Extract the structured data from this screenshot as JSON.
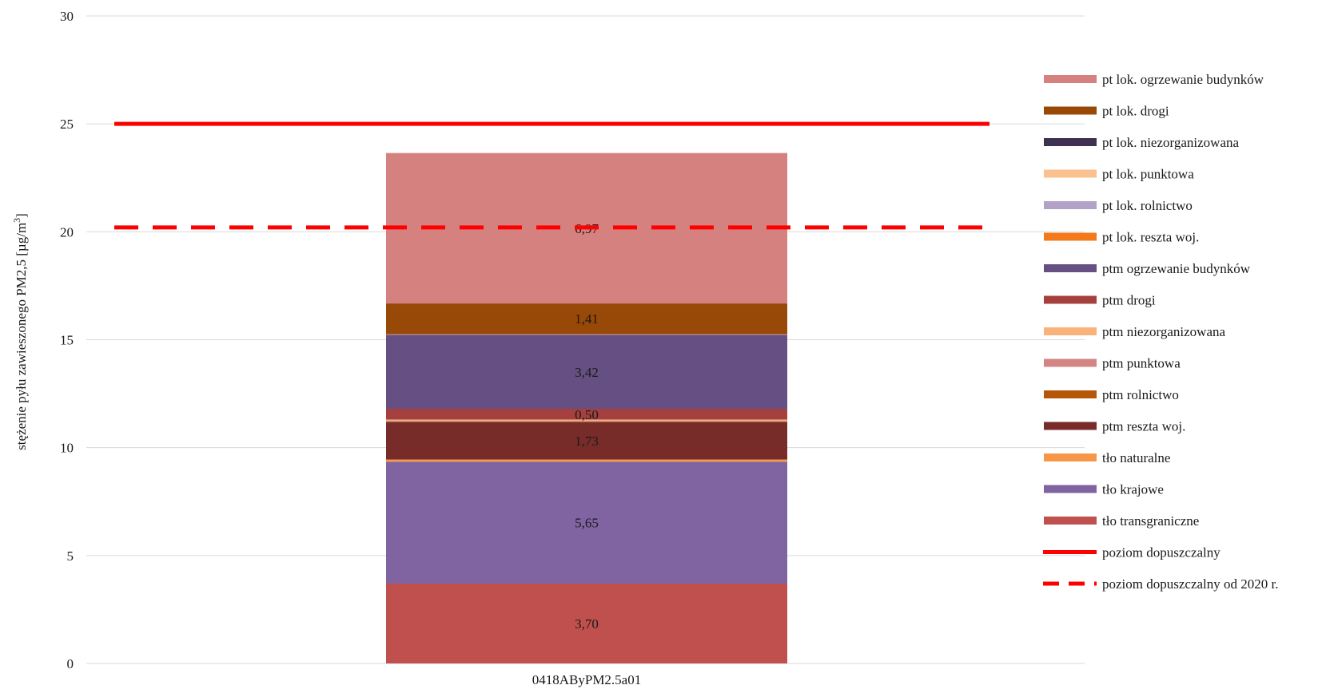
{
  "chart_data": {
    "type": "bar",
    "stacked": true,
    "categories": [
      "0418AByPM2.5a01"
    ],
    "ylabel": "stężenie pyłu zawieszonego PM2,5 [µg/m3]",
    "ylabel_main": "stężenie pyłu zawieszonego PM2,5 [µg/m",
    "ylabel_sup": "3",
    "ylabel_end": "]",
    "ylim": [
      0,
      30
    ],
    "yticks": [
      0,
      5,
      10,
      15,
      20,
      25,
      30
    ],
    "grid": true,
    "legend_position": "right",
    "series": [
      {
        "name": "tło transgraniczne",
        "values": [
          3.7
        ],
        "label": "3,70",
        "color": "#c0504d"
      },
      {
        "name": "tło krajowe",
        "values": [
          5.65
        ],
        "label": "5,65",
        "color": "#8064a2"
      },
      {
        "name": "tło naturalne",
        "values": [
          0.1
        ],
        "label": "",
        "color": "#f79646"
      },
      {
        "name": "ptm reszta woj.",
        "values": [
          1.73
        ],
        "label": "1,73",
        "color": "#772c2a"
      },
      {
        "name": "ptm rolnictwo",
        "values": [
          0.04
        ],
        "label": "",
        "color": "#b65708"
      },
      {
        "name": "ptm punktowa",
        "values": [
          0.05
        ],
        "label": "",
        "color": "#d99694"
      },
      {
        "name": "ptm niezorganizowana",
        "values": [
          0.03
        ],
        "label": "",
        "color": "#fac090"
      },
      {
        "name": "ptm drogi",
        "values": [
          0.5
        ],
        "label": "0,50",
        "color": "#a5403e"
      },
      {
        "name": "ptm ogrzewanie budynków",
        "values": [
          3.42
        ],
        "label": "3,42",
        "color": "#664f82"
      },
      {
        "name": "pt lok. reszta woj.",
        "values": [
          0.02
        ],
        "label": "",
        "color": "#f4791a"
      },
      {
        "name": "pt lok. rolnictwo",
        "values": [
          0.01
        ],
        "label": "",
        "color": "#b3a2c7"
      },
      {
        "name": "pt lok. punktowa",
        "values": [
          0.01
        ],
        "label": "",
        "color": "#fac090"
      },
      {
        "name": "pt lok. niezorganizowana",
        "values": [
          0.01
        ],
        "label": "",
        "color": "#3f3151"
      },
      {
        "name": "pt lok. drogi",
        "values": [
          1.41
        ],
        "label": "1,41",
        "color": "#984807"
      },
      {
        "name": "pt lok. ogrzewanie budynków",
        "values": [
          6.97
        ],
        "label": "6,97",
        "color": "#d58180"
      }
    ],
    "reference_lines": [
      {
        "name": "poziom dopuszczalny",
        "value": 25,
        "style": "solid",
        "color": "#ff0000"
      },
      {
        "name": "poziom dopuszczalny od 2020 r.",
        "value": 20.2,
        "style": "dashed",
        "color": "#ff0000"
      }
    ],
    "legend_order": [
      "pt lok. ogrzewanie budynków",
      "pt lok. drogi",
      "pt lok. niezorganizowana",
      "pt lok. punktowa",
      "pt lok. rolnictwo",
      "pt lok. reszta woj.",
      "ptm ogrzewanie budynków",
      "ptm drogi",
      "ptm niezorganizowana",
      "ptm punktowa",
      "ptm rolnictwo",
      "ptm reszta woj.",
      "tło naturalne",
      "tło krajowe",
      "tło transgraniczne",
      "poziom dopuszczalny",
      "poziom dopuszczalny od 2020 r."
    ],
    "legend_colors": {
      "pt lok. ogrzewanie budynków": "#d58180",
      "pt lok. drogi": "#984807",
      "pt lok. niezorganizowana": "#3f3151",
      "pt lok. punktowa": "#fac090",
      "pt lok. rolnictwo": "#b3a2c7",
      "pt lok. reszta woj.": "#f4791a",
      "ptm ogrzewanie budynków": "#664f82",
      "ptm drogi": "#a5403e",
      "ptm niezorganizowana": "#f9b27a",
      "ptm punktowa": "#d38584",
      "ptm rolnictwo": "#b65708",
      "ptm reszta woj.": "#772c2a",
      "tło naturalne": "#f79646",
      "tło krajowe": "#8064a2",
      "tło transgraniczne": "#c0504d"
    }
  }
}
